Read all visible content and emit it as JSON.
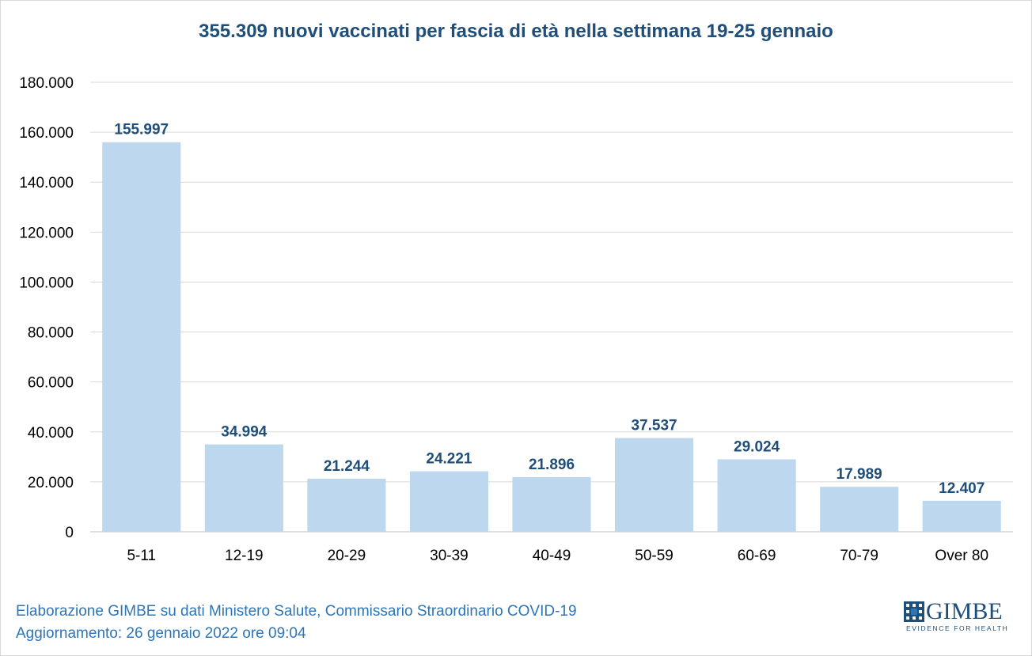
{
  "chart_data": {
    "type": "bar",
    "title": "355.309 nuovi vaccinati per fascia di età nella settimana 19-25 gennaio",
    "xlabel": "",
    "ylabel": "",
    "categories": [
      "5-11",
      "12-19",
      "20-29",
      "30-39",
      "40-49",
      "50-59",
      "60-69",
      "70-79",
      "Over 80"
    ],
    "values": [
      155997,
      34994,
      21244,
      24221,
      21896,
      37537,
      29024,
      17989,
      12407
    ],
    "value_labels": [
      "155.997",
      "34.994",
      "21.244",
      "24.221",
      "21.896",
      "37.537",
      "29.024",
      "17.989",
      "12.407"
    ],
    "ylim": [
      0,
      180000
    ],
    "yticks": [
      0,
      20000,
      40000,
      60000,
      80000,
      100000,
      120000,
      140000,
      160000,
      180000
    ],
    "ytick_labels": [
      "0",
      "20.000",
      "40.000",
      "60.000",
      "80.000",
      "100.000",
      "120.000",
      "140.000",
      "160.000",
      "180.000"
    ],
    "grid": true,
    "legend": "none",
    "bar_color": "#bdd7ee",
    "label_color": "#1f4e79",
    "title_color": "#1f4e79"
  },
  "footer": {
    "line1": "Elaborazione GIMBE su dati Ministero Salute, Commissario Straordinario COVID-19",
    "line2": "Aggiornamento: 26 gennaio 2022 ore 09:04"
  },
  "logo": {
    "name": "GIMBE",
    "tagline": "EVIDENCE FOR HEALTH",
    "icon": "gimbe-logo-grid-icon"
  }
}
